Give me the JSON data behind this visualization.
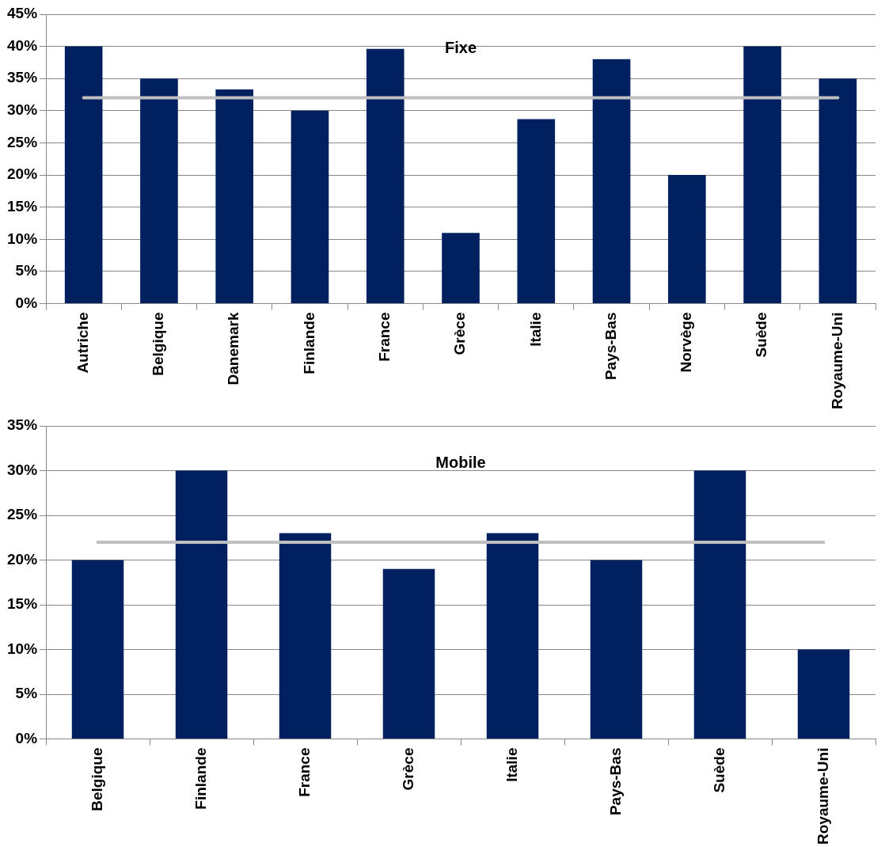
{
  "chart_data": [
    {
      "type": "bar",
      "categories": [
        "Autriche",
        "Belgique",
        "Danemark",
        "Finlande",
        "France",
        "Grèce",
        "Italie",
        "Pays-Bas",
        "Norvège",
        "Suède",
        "Royaume-Uni"
      ],
      "values": [
        40,
        35,
        33.3,
        30,
        39.6,
        11,
        28.7,
        38,
        20,
        40,
        35
      ],
      "color": "#002060",
      "ylim": [
        0,
        45
      ],
      "yticks": [
        {
          "value": 0,
          "label": "0%"
        },
        {
          "value": 5,
          "label": "5%"
        },
        {
          "value": 10,
          "label": "10%"
        },
        {
          "value": 15,
          "label": "15%"
        },
        {
          "value": 20,
          "label": "20%"
        },
        {
          "value": 25,
          "label": "25%"
        },
        {
          "value": 30,
          "label": "30%"
        },
        {
          "value": 35,
          "label": "35%"
        },
        {
          "value": 40,
          "label": "40%"
        },
        {
          "value": 45,
          "label": "45%"
        }
      ],
      "grid": "y",
      "legend": false,
      "title": "Fixe",
      "ref_lines": [
        {
          "axis": "y",
          "value": 32,
          "color": "#bfbfbf"
        }
      ]
    },
    {
      "type": "bar",
      "categories": [
        "Belgique",
        "Finlande",
        "France",
        "Grèce",
        "Italie",
        "Pays-Bas",
        "Suède",
        "Royaume-Uni"
      ],
      "values": [
        20,
        30,
        23,
        19,
        23,
        20,
        30,
        10
      ],
      "color": "#002060",
      "ylim": [
        0,
        35
      ],
      "yticks": [
        {
          "value": 0,
          "label": "0%"
        },
        {
          "value": 5,
          "label": "5%"
        },
        {
          "value": 10,
          "label": "10%"
        },
        {
          "value": 15,
          "label": "15%"
        },
        {
          "value": 20,
          "label": "20%"
        },
        {
          "value": 25,
          "label": "25%"
        },
        {
          "value": 30,
          "label": "30%"
        },
        {
          "value": 35,
          "label": "35%"
        }
      ],
      "grid": "y",
      "legend": false,
      "title": "Mobile",
      "ref_lines": [
        {
          "axis": "y",
          "value": 22,
          "color": "#bfbfbf"
        }
      ]
    }
  ]
}
